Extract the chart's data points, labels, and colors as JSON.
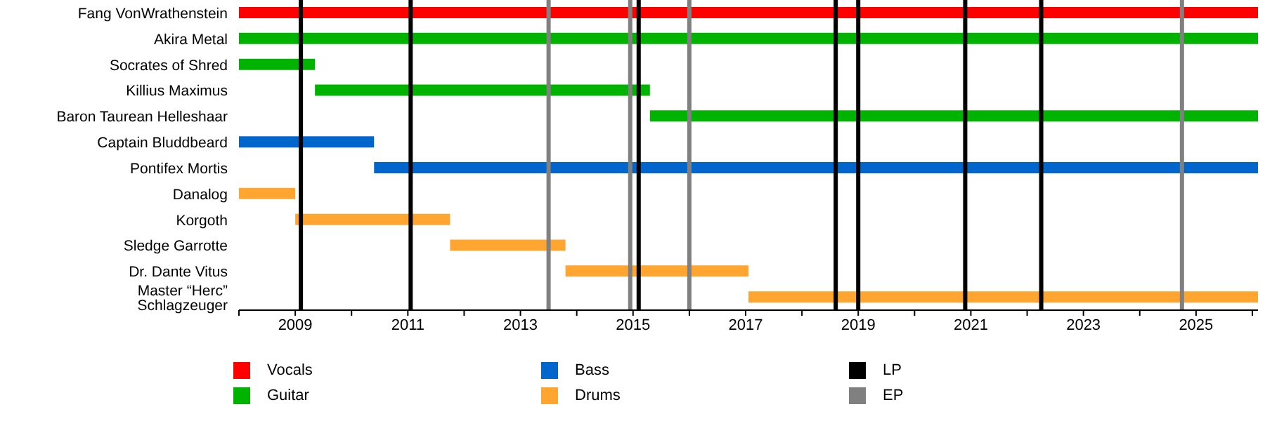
{
  "chart_data": {
    "type": "bar",
    "orientation": "horizontal",
    "categories": [
      "Fang VonWrathenstein",
      "Akira Metal",
      "Socrates of Shred",
      "Killius Maximus",
      "Baron Taurean Helleshaar",
      "Captain Bluddbeard",
      "Pontifex Mortis",
      "Danalog",
      "Korgoth",
      "Sledge Garrotte",
      "Dr. Dante Vitus",
      "Master “Herc” Schlagzeuger"
    ],
    "series": [
      {
        "name": "Vocals",
        "color": "#ff0000",
        "base": [
          2008,
          null,
          null,
          null,
          null,
          null,
          null,
          null,
          null,
          null,
          null,
          null
        ],
        "values": [
          18.1,
          null,
          null,
          null,
          null,
          null,
          null,
          null,
          null,
          null,
          null,
          null
        ]
      },
      {
        "name": "Guitar",
        "color": "#00b300",
        "base": [
          null,
          2008,
          2008,
          2009.35,
          2015.3,
          null,
          null,
          null,
          null,
          null,
          null,
          null
        ],
        "values": [
          null,
          18.1,
          1.35,
          5.95,
          10.8,
          null,
          null,
          null,
          null,
          null,
          null,
          null
        ]
      },
      {
        "name": "Bass",
        "color": "#0066cc",
        "base": [
          null,
          null,
          null,
          null,
          null,
          2008,
          2010.4,
          null,
          null,
          null,
          null,
          null
        ],
        "values": [
          null,
          null,
          null,
          null,
          null,
          2.4,
          15.7,
          null,
          null,
          null,
          null,
          null
        ]
      },
      {
        "name": "Drums",
        "color": "#ffa530",
        "base": [
          null,
          null,
          null,
          null,
          null,
          null,
          null,
          2008,
          2009,
          2011.75,
          2013.8,
          2017.05
        ],
        "values": [
          null,
          null,
          null,
          null,
          null,
          null,
          null,
          1,
          2.75,
          2.05,
          3.25,
          9.05
        ]
      }
    ],
    "xlim": [
      2008,
      2026.1
    ],
    "xticks": [
      {
        "value": 2008,
        "label": null
      },
      2009,
      {
        "value": 2010,
        "label": null
      },
      2011,
      {
        "value": 2012,
        "label": null
      },
      2013,
      {
        "value": 2014,
        "label": null
      },
      2015,
      {
        "value": 2016,
        "label": null
      },
      2017,
      {
        "value": 2018,
        "label": null
      },
      2019,
      {
        "value": 2020,
        "label": null
      },
      2021,
      {
        "value": 2022,
        "label": null
      },
      2023,
      {
        "value": 2024,
        "label": null
      },
      2025,
      {
        "value": 2026,
        "label": null
      }
    ],
    "ref_lines": [
      {
        "axis": "x",
        "value": 2009.1,
        "label": "LP",
        "color": "#000000"
      },
      {
        "axis": "x",
        "value": 2011.05,
        "color": "#000000"
      },
      {
        "axis": "x",
        "value": 2015.1,
        "color": "#000000"
      },
      {
        "axis": "x",
        "value": 2018.6,
        "color": "#000000"
      },
      {
        "axis": "x",
        "value": 2019,
        "color": "#000000"
      },
      {
        "axis": "x",
        "value": 2020.9,
        "color": "#000000"
      },
      {
        "axis": "x",
        "value": 2022.25,
        "color": "#000000"
      },
      {
        "axis": "x",
        "value": 2013.5,
        "label": "EP",
        "color": "#808080"
      },
      {
        "axis": "x",
        "value": 2014.95,
        "color": "#808080"
      },
      {
        "axis": "x",
        "value": 2016,
        "color": "#808080"
      },
      {
        "axis": "x",
        "value": 2024.75,
        "color": "#808080"
      }
    ],
    "legend": "bottom"
  }
}
